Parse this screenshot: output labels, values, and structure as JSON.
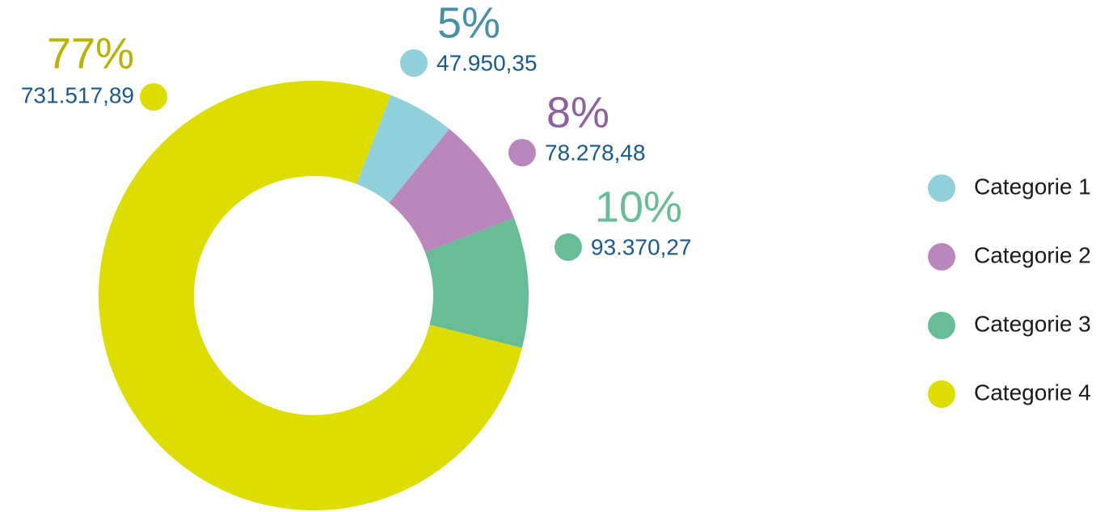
{
  "chart_data": {
    "type": "donut",
    "categories": [
      "Categorie 1",
      "Categorie 2",
      "Categorie 3",
      "Categorie 4"
    ],
    "values": [
      47950.35,
      78278.48,
      93370.27,
      731517.89
    ],
    "value_labels": [
      "47.950,35",
      "78.278,48",
      "93.370,27",
      "731.517,89"
    ],
    "percent_labels": [
      "5%",
      "8%",
      "10%",
      "77%"
    ],
    "colors": [
      "#8fd0da",
      "#b987bb",
      "#67bd96",
      "#dedd00"
    ],
    "percent_label_colors": [
      "#4a8fa8",
      "#8e62a0",
      "#67bd96",
      "#b8b300"
    ],
    "value_label_color": "#1a5a8e",
    "legend": "right"
  }
}
